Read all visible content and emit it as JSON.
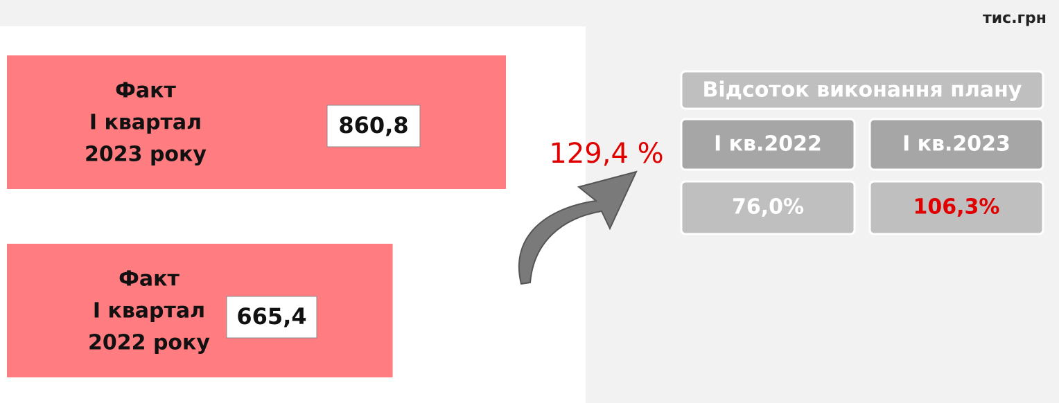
{
  "unit": "тис.грн",
  "bars": [
    {
      "label_lines": [
        "Факт",
        "І квартал",
        "2023 року"
      ],
      "value": 860.8,
      "value_label": "860,8"
    },
    {
      "label_lines": [
        "Факт",
        "І квартал",
        "2022 року"
      ],
      "value": 665.4,
      "value_label": "665,4"
    }
  ],
  "growth": "129,4 %",
  "table": {
    "title": "Відсоток виконання плану",
    "columns": [
      "І кв.2022",
      "І кв.2023"
    ],
    "values": [
      "76,0%",
      "106,3%"
    ]
  }
}
